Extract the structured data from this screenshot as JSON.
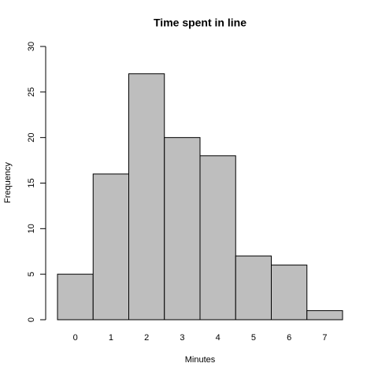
{
  "chart_data": {
    "type": "bar",
    "title": "Time spent in line",
    "x_label": "Minutes",
    "y_label": "Frequency",
    "categories": [
      "0",
      "1",
      "2",
      "3",
      "4",
      "5",
      "6",
      "7"
    ],
    "values": [
      5,
      16,
      27,
      20,
      18,
      7,
      6,
      1
    ],
    "color": "#bebebe",
    "ylim": [
      0,
      30
    ],
    "yticks": [
      0,
      5,
      10,
      15,
      20,
      25,
      30
    ],
    "grid": false
  }
}
